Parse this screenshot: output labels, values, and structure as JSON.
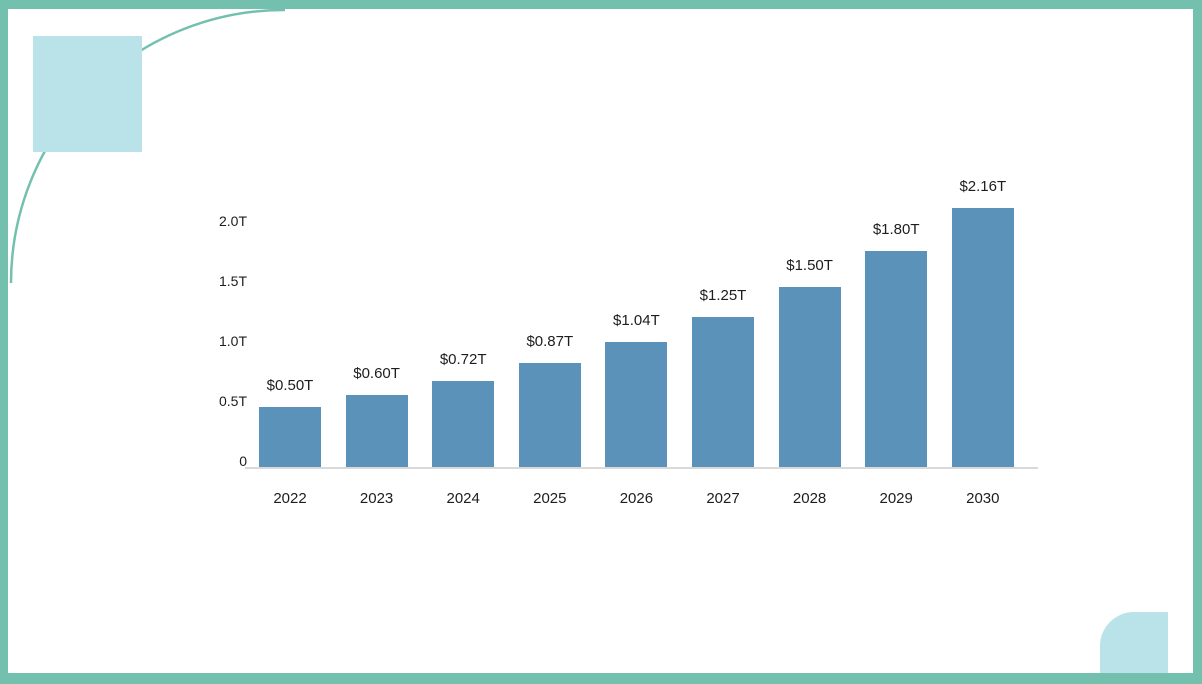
{
  "colors": {
    "frame_teal": "#74c0ae",
    "pale_blue": "#b9e2e9",
    "bar_blue": "#5a92ba",
    "axis_gray": "#d9d9d9",
    "text_dark": "#1d1d1f",
    "background": "#ffffff"
  },
  "chart_data": {
    "type": "bar",
    "title": "",
    "categories": [
      "2022",
      "2023",
      "2024",
      "2025",
      "2026",
      "2027",
      "2028",
      "2029",
      "2030"
    ],
    "values": [
      0.5,
      0.6,
      0.72,
      0.87,
      1.04,
      1.25,
      1.5,
      1.8,
      2.16
    ],
    "value_labels": [
      "$0.50T",
      "$0.60T",
      "$0.72T",
      "$0.87T",
      "$1.04T",
      "$1.25T",
      "$1.50T",
      "$1.80T",
      "$2.16T"
    ],
    "xlabel": "",
    "ylabel": "",
    "y_axis": {
      "ticks": [
        "0",
        "0.5T",
        "1.0T",
        "1.5T",
        "2.0T"
      ],
      "tick_values": [
        0,
        0.5,
        1.0,
        1.5,
        2.0
      ],
      "ylim": [
        0,
        2.3
      ]
    },
    "legend": null,
    "grid": false,
    "bar_color": "#5a92ba"
  }
}
